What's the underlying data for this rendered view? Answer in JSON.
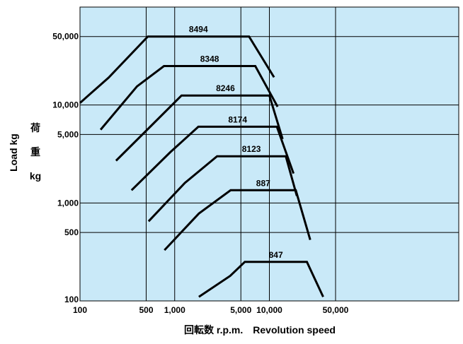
{
  "chart_data": {
    "type": "line",
    "title": "",
    "xlabel": "回転数 r.p.m.　Revolution speed",
    "ylabel_en": "Load  kg",
    "ylabel_jp": "荷",
    "ylabel_jp2": "重",
    "ylabel_unit": "kg",
    "x_scale": "log",
    "y_scale": "log",
    "xlim": [
      100,
      1000000
    ],
    "ylim": [
      100,
      100000
    ],
    "grid": true,
    "background": "#c9e9f8",
    "line_color": "#000000",
    "x_ticks": [
      {
        "v": 100,
        "label": "100"
      },
      {
        "v": 500,
        "label": "500"
      },
      {
        "v": 1000,
        "label": "1,000"
      },
      {
        "v": 5000,
        "label": "5,000"
      },
      {
        "v": 10000,
        "label": "10,000"
      },
      {
        "v": 50000,
        "label": "50,000"
      }
    ],
    "x_grid": [
      500,
      1000,
      5000,
      10000,
      50000
    ],
    "y_ticks": [
      {
        "v": 100,
        "label": "100"
      },
      {
        "v": 500,
        "label": "500"
      },
      {
        "v": 1000,
        "label": "1,000"
      },
      {
        "v": 5000,
        "label": "5,000"
      },
      {
        "v": 10000,
        "label": "10,000"
      },
      {
        "v": 50000,
        "label": "50,000"
      }
    ],
    "y_grid": [
      500,
      1000,
      5000,
      10000,
      50000
    ],
    "series": [
      {
        "name": "8494",
        "points": [
          [
            100,
            10500
          ],
          [
            200,
            19000
          ],
          [
            520,
            50000
          ],
          [
            6100,
            50000
          ],
          [
            11200,
            19200
          ]
        ]
      },
      {
        "name": "8348",
        "points": [
          [
            165,
            5600
          ],
          [
            400,
            15500
          ],
          [
            770,
            25000
          ],
          [
            7100,
            25000
          ],
          [
            12200,
            9600
          ]
        ]
      },
      {
        "name": "8246",
        "points": [
          [
            240,
            2700
          ],
          [
            590,
            6400
          ],
          [
            1180,
            12500
          ],
          [
            10000,
            12500
          ],
          [
            13800,
            4500
          ]
        ]
      },
      {
        "name": "8174",
        "points": [
          [
            350,
            1350
          ],
          [
            900,
            3300
          ],
          [
            1780,
            6000
          ],
          [
            12000,
            6000
          ],
          [
            18000,
            2000
          ]
        ]
      },
      {
        "name": "8123",
        "points": [
          [
            530,
            650
          ],
          [
            1280,
            1600
          ],
          [
            2800,
            3000
          ],
          [
            14900,
            3000
          ],
          [
            19500,
            1180
          ]
        ]
      },
      {
        "name": "887",
        "points": [
          [
            780,
            330
          ],
          [
            1800,
            780
          ],
          [
            3900,
            1350
          ],
          [
            19000,
            1350
          ],
          [
            27000,
            420
          ]
        ]
      },
      {
        "name": "847",
        "points": [
          [
            1800,
            110
          ],
          [
            3850,
            180
          ],
          [
            5500,
            250
          ],
          [
            24900,
            250
          ],
          [
            37000,
            110
          ]
        ]
      }
    ]
  }
}
